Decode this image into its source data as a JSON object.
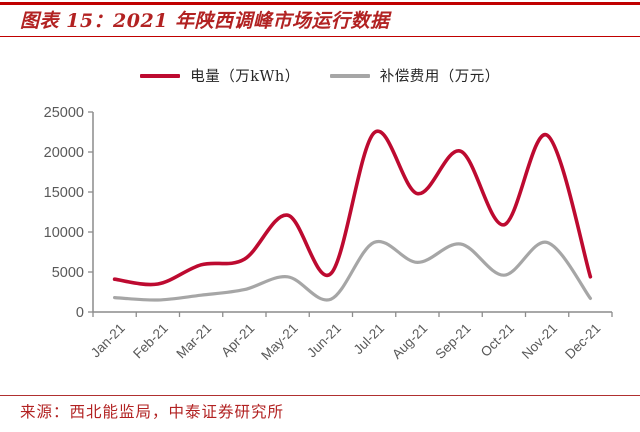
{
  "header": {
    "title": "图表 15：2021 年陕西调峰市场运行数据"
  },
  "legend": {
    "items": [
      {
        "label": "电量（万kWh）",
        "color": "#BD0A30"
      },
      {
        "label": "补偿费用（万元）",
        "color": "#A6A6A6"
      }
    ]
  },
  "chart_data": {
    "type": "line",
    "title": "2021 年陕西调峰市场运行数据",
    "x": [
      "Jan-21",
      "Feb-21",
      "Mar-21",
      "Apr-21",
      "May-21",
      "Jun-21",
      "Jul-21",
      "Aug-21",
      "Sep-21",
      "Oct-21",
      "Nov-21",
      "Dec-21"
    ],
    "series": [
      {
        "name": "电量（万kWh）",
        "color": "#BD0A30",
        "width": 3.6,
        "values": [
          4100,
          3500,
          5900,
          6600,
          12100,
          4800,
          22400,
          14800,
          20100,
          10900,
          22100,
          4400
        ]
      },
      {
        "name": "补偿费用（万元）",
        "color": "#A6A6A6",
        "width": 3.2,
        "values": [
          1800,
          1500,
          2100,
          2800,
          4400,
          1600,
          8700,
          6200,
          8500,
          4600,
          8700,
          1700
        ]
      }
    ],
    "ylim": [
      0,
      25000
    ],
    "yticks": [
      0,
      5000,
      10000,
      15000,
      20000,
      25000
    ],
    "xlabel": "",
    "ylabel": "",
    "grid": false,
    "smooth": true,
    "legend_position": "top",
    "axis_color": "#8C8C8C",
    "label_color": "#595959"
  },
  "footer": {
    "source": "来源：西北能监局，中泰证券研究所"
  },
  "colors": {
    "accent_rule": "#C00000",
    "title_text": "#B22222"
  }
}
